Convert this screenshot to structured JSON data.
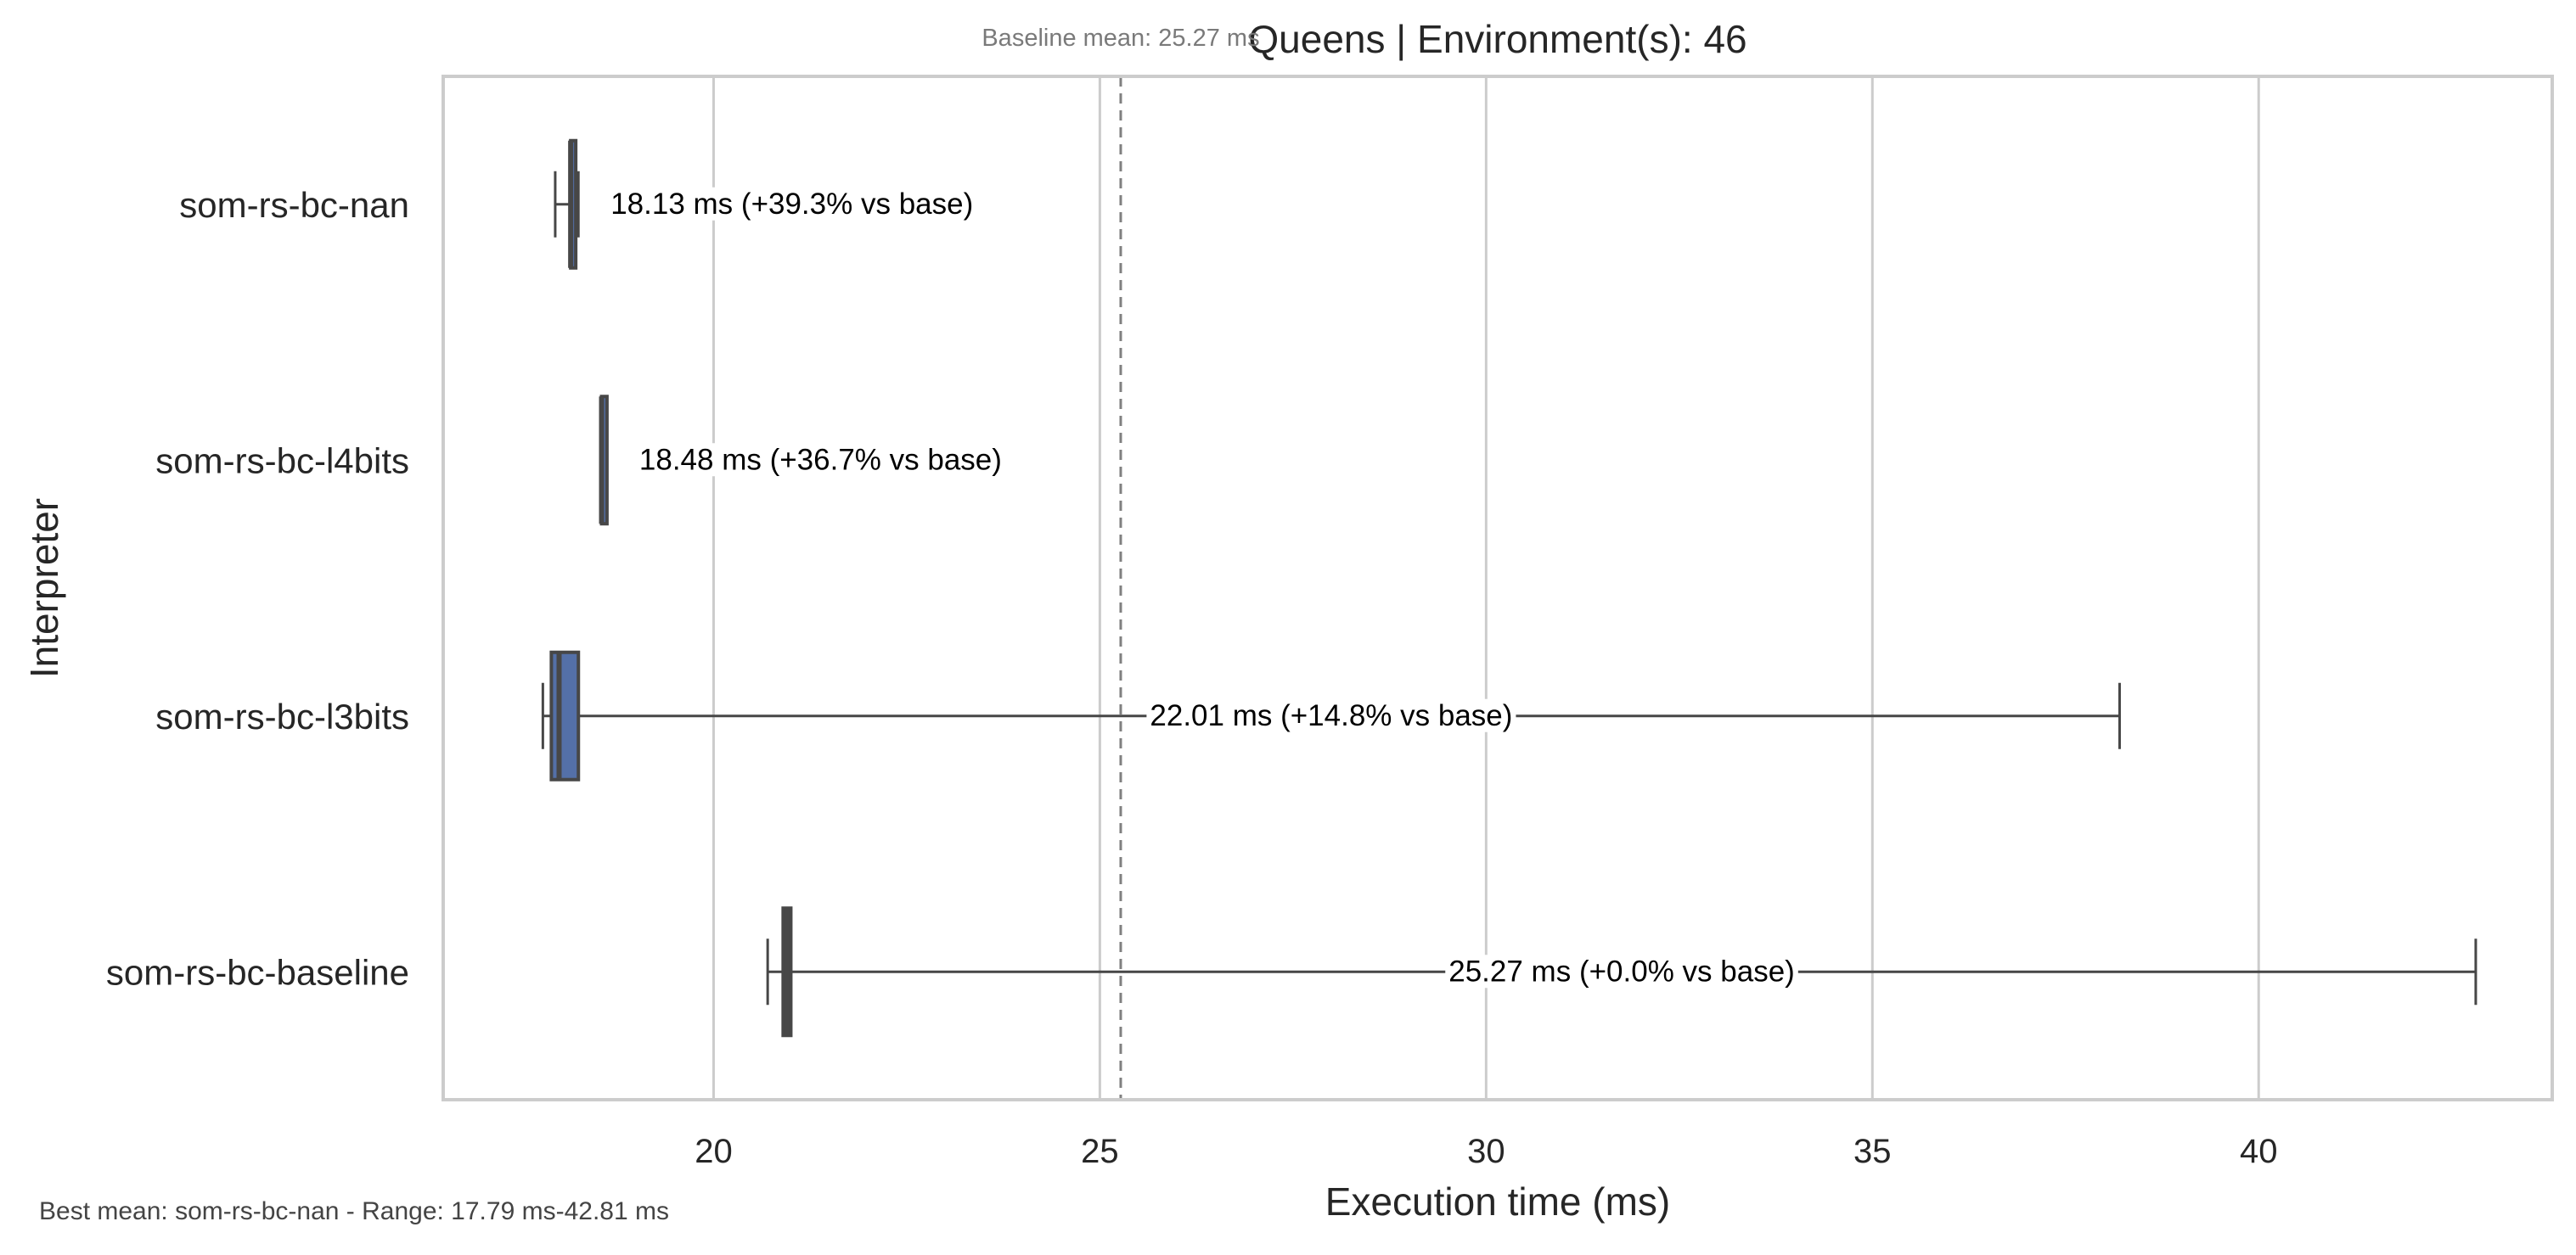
{
  "chart_data": {
    "type": "box",
    "orientation": "horizontal",
    "title": "Queens | Environment(s): 46",
    "xlabel": "Execution time (ms)",
    "ylabel": "Interpreter",
    "xlim": [
      16.5,
      43.8
    ],
    "x_ticks": [
      20,
      25,
      30,
      35,
      40
    ],
    "grid": "x",
    "categories": [
      "som-rs-bc-nan",
      "som-rs-bc-l4bits",
      "som-rs-bc-l3bits",
      "som-rs-bc-baseline"
    ],
    "boxes": [
      {
        "category": "som-rs-bc-nan",
        "whisker_low": 17.95,
        "q1": 18.15,
        "median": 18.15,
        "q3": 18.18,
        "whisker_high": 18.25,
        "label": "18.13 ms  (+39.3% vs base)"
      },
      {
        "category": "som-rs-bc-l4bits",
        "whisker_low": 18.55,
        "q1": 18.55,
        "median": 18.55,
        "q3": 18.62,
        "whisker_high": 18.62,
        "label": "18.48 ms  (+36.7% vs base)"
      },
      {
        "category": "som-rs-bc-l3bits",
        "whisker_low": 17.79,
        "q1": 17.9,
        "median": 18.0,
        "q3": 18.25,
        "whisker_high": 38.2,
        "label": "22.01 ms  (+14.8% vs base)"
      },
      {
        "category": "som-rs-bc-baseline",
        "whisker_low": 20.7,
        "q1": 20.9,
        "median": 20.95,
        "q3": 21.0,
        "whisker_high": 42.81,
        "label": "25.27 ms  (+0.0% vs base)"
      }
    ],
    "reference_line": {
      "value": 25.27,
      "style": "dashed",
      "label": "Baseline mean: 25.27 ms"
    },
    "footnote": "Best mean: som-rs-bc-nan - Range: 17.79 ms-42.81 ms",
    "colors": {
      "box_fill": "#5470a8",
      "box_edge": "#474747",
      "grid": "#cccccc",
      "frame": "#cccccc",
      "ref_line": "#808080",
      "ref_text": "#7a7a7a",
      "text": "#262626"
    }
  }
}
